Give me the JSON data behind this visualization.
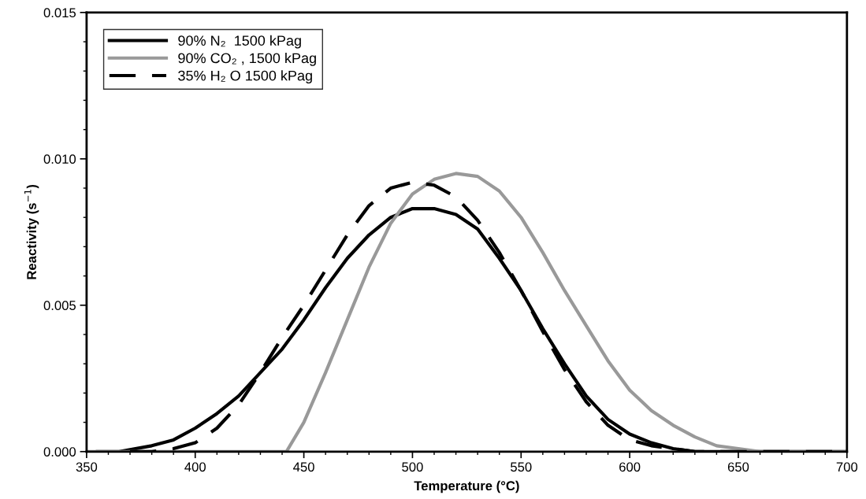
{
  "chart_data": {
    "type": "line",
    "xlabel": "Temperature (°C)",
    "ylabel": "Reactivity (s$^{−1}$)",
    "xlim": [
      350,
      700
    ],
    "ylim": [
      0,
      0.015
    ],
    "xticks": [
      350,
      {
        "value": 360,
        "label": null
      },
      {
        "value": 370,
        "label": null
      },
      {
        "value": 380,
        "label": null
      },
      {
        "value": 390,
        "label": null
      },
      400,
      {
        "value": 410,
        "label": null
      },
      {
        "value": 420,
        "label": null
      },
      {
        "value": 430,
        "label": null
      },
      {
        "value": 440,
        "label": null
      },
      450,
      {
        "value": 460,
        "label": null
      },
      {
        "value": 470,
        "label": null
      },
      {
        "value": 480,
        "label": null
      },
      {
        "value": 490,
        "label": null
      },
      500,
      {
        "value": 510,
        "label": null
      },
      {
        "value": 520,
        "label": null
      },
      {
        "value": 530,
        "label": null
      },
      {
        "value": 540,
        "label": null
      },
      550,
      {
        "value": 560,
        "label": null
      },
      {
        "value": 570,
        "label": null
      },
      {
        "value": 580,
        "label": null
      },
      {
        "value": 590,
        "label": null
      },
      600,
      {
        "value": 610,
        "label": null
      },
      {
        "value": 620,
        "label": null
      },
      {
        "value": 630,
        "label": null
      },
      {
        "value": 640,
        "label": null
      },
      650,
      {
        "value": 660,
        "label": null
      },
      {
        "value": 670,
        "label": null
      },
      {
        "value": 680,
        "label": null
      },
      {
        "value": 690,
        "label": null
      },
      700
    ],
    "yticks": [
      {
        "value": 0,
        "label": "0.000"
      },
      {
        "value": 0.001,
        "label": null
      },
      {
        "value": 0.002,
        "label": null
      },
      {
        "value": 0.003,
        "label": null
      },
      {
        "value": 0.004,
        "label": null
      },
      {
        "value": 0.005,
        "label": "0.005"
      },
      {
        "value": 0.006,
        "label": null
      },
      {
        "value": 0.007,
        "label": null
      },
      {
        "value": 0.008,
        "label": null
      },
      {
        "value": 0.009,
        "label": null
      },
      {
        "value": 0.01,
        "label": "0.010"
      },
      {
        "value": 0.011,
        "label": null
      },
      {
        "value": 0.012,
        "label": null
      },
      {
        "value": 0.013,
        "label": null
      },
      {
        "value": 0.014,
        "label": null
      },
      {
        "value": 0.015,
        "label": "0.015"
      }
    ],
    "grid": false,
    "legend": "top left",
    "marker": "none",
    "series": [
      {
        "name": "90% N₂  1500 kPag",
        "color": "#000000",
        "line_style": "solid",
        "x": [
          355,
          365,
          380,
          390,
          400,
          410,
          420,
          430,
          440,
          450,
          460,
          470,
          480,
          490,
          500,
          510,
          520,
          530,
          540,
          550,
          560,
          570,
          580,
          590,
          600,
          610,
          620,
          630,
          640,
          700
        ],
        "values": [
          0,
          0,
          0.0002,
          0.0004,
          0.0008,
          0.0013,
          0.0019,
          0.0027,
          0.0035,
          0.0045,
          0.0056,
          0.0066,
          0.0074,
          0.008,
          0.0083,
          0.0083,
          0.0081,
          0.0076,
          0.0066,
          0.0055,
          0.0042,
          0.003,
          0.0019,
          0.0011,
          0.0006,
          0.0003,
          0.0001,
          0,
          0,
          0
        ]
      },
      {
        "name": "90% CO₂ , 1500 kPag",
        "color": "#999999",
        "line_style": "solid",
        "x": [
          350,
          442,
          450,
          460,
          470,
          480,
          490,
          500,
          510,
          520,
          530,
          540,
          550,
          560,
          570,
          580,
          590,
          600,
          610,
          620,
          630,
          640,
          650,
          660,
          680,
          700
        ],
        "values": [
          0,
          0,
          0.001,
          0.0027,
          0.0045,
          0.0063,
          0.0078,
          0.0088,
          0.0093,
          0.0095,
          0.0094,
          0.0089,
          0.008,
          0.0068,
          0.0055,
          0.0043,
          0.0031,
          0.0021,
          0.0014,
          0.0009,
          0.0005,
          0.0002,
          0.0001,
          0,
          0,
          0
        ]
      },
      {
        "name": "35% H₂ O 1500 kPag",
        "color": "#000000",
        "line_style": "dashed",
        "x": [
          370,
          380,
          390,
          400,
          410,
          420,
          430,
          440,
          450,
          460,
          470,
          480,
          490,
          500,
          510,
          520,
          530,
          540,
          550,
          560,
          570,
          580,
          590,
          600,
          610,
          620,
          630,
          700
        ],
        "values": [
          0,
          0,
          0.0001,
          0.0003,
          0.0008,
          0.0016,
          0.0027,
          0.0039,
          0.005,
          0.0062,
          0.0074,
          0.0084,
          0.009,
          0.0092,
          0.0091,
          0.0087,
          0.0079,
          0.0068,
          0.0055,
          0.0041,
          0.0028,
          0.0017,
          0.0009,
          0.0004,
          0.0002,
          0.0001,
          0,
          0
        ]
      }
    ]
  }
}
